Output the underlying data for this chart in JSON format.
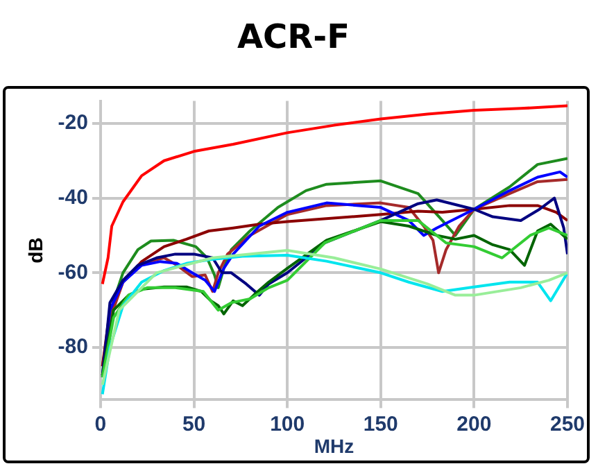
{
  "chart_data": {
    "type": "line",
    "title": "ACR-F",
    "xlabel": "MHz",
    "ylabel": "dB",
    "xlim": [
      0,
      250
    ],
    "xticks": [
      0,
      50,
      100,
      150,
      200,
      250
    ],
    "ylim": [
      -94,
      -14
    ],
    "yticks": [
      -20,
      -40,
      -60,
      -80
    ],
    "grid": true,
    "legend": false,
    "marker": "none",
    "line_style": "solid",
    "series": [
      {
        "color": "#ff0000",
        "x": [
          1,
          4,
          6,
          12,
          22,
          34,
          50,
          71,
          100,
          125,
          150,
          175,
          200,
          225,
          250
        ],
        "values": [
          -63,
          -56,
          -47.5,
          -41,
          -34,
          -30,
          -27.5,
          -25.6,
          -22.5,
          -20.5,
          -18.8,
          -17.5,
          -16.5,
          -16,
          -15.3
        ]
      },
      {
        "color": "#99ee99",
        "x": [
          1,
          10,
          30,
          60,
          100,
          125,
          150,
          175,
          190,
          200,
          225,
          240,
          250
        ],
        "values": [
          -90,
          -70,
          -60,
          -56,
          -54,
          -56,
          -59,
          -63,
          -66,
          -66,
          -64,
          -62,
          -60
        ]
      },
      {
        "color": "#00e5ee",
        "x": [
          1,
          5,
          12,
          22,
          34,
          46,
          58,
          76,
          100,
          121,
          150,
          165,
          183,
          200,
          219,
          234,
          241,
          250
        ],
        "values": [
          -92.5,
          -80,
          -68.8,
          -62.5,
          -59.4,
          -57.5,
          -56.5,
          -55.6,
          -55.3,
          -56.9,
          -60,
          -62.5,
          -65,
          -63.8,
          -62.5,
          -62.5,
          -67.5,
          -60
        ]
      },
      {
        "color": "#33cc33",
        "x": [
          1,
          7,
          15,
          25,
          40,
          55,
          63,
          70,
          80,
          90,
          100,
          120,
          150,
          170,
          185,
          200,
          215,
          230,
          240,
          250
        ],
        "values": [
          -88,
          -72,
          -66,
          -64,
          -64,
          -65,
          -70,
          -68,
          -67,
          -64,
          -62,
          -52,
          -46,
          -46,
          -52,
          -53,
          -56,
          -50,
          -48,
          -50
        ]
      },
      {
        "color": "#006400",
        "x": [
          1,
          7,
          15,
          22,
          34,
          46,
          54,
          59,
          63,
          66,
          71,
          76,
          82,
          90,
          100,
          121,
          150,
          165,
          180,
          190,
          200,
          210,
          219,
          227,
          234,
          241,
          250
        ],
        "values": [
          -87.5,
          -70,
          -66,
          -64.4,
          -63.8,
          -63.8,
          -65,
          -67.5,
          -68.8,
          -71,
          -67.5,
          -68.8,
          -66,
          -62.5,
          -58.8,
          -51.3,
          -46.3,
          -47.5,
          -50,
          -51,
          -50,
          -52.5,
          -53.8,
          -58,
          -48.8,
          -47,
          -51
        ]
      },
      {
        "color": "#000080",
        "x": [
          1,
          5,
          12,
          20,
          30,
          40,
          50,
          60,
          65,
          70,
          78,
          85,
          90,
          100,
          120,
          150,
          170,
          180,
          200,
          210,
          225,
          235,
          243,
          248,
          250
        ],
        "values": [
          -88,
          -68,
          -62,
          -58,
          -56,
          -55,
          -55,
          -56,
          -60,
          -60,
          -63,
          -66,
          -63,
          -60,
          -52,
          -46,
          -41.5,
          -40.5,
          -43,
          -45,
          -46,
          -43,
          -40,
          -48,
          -55
        ]
      },
      {
        "color": "#0000ff",
        "x": [
          1,
          5,
          12,
          22,
          32,
          41,
          49,
          56,
          61,
          66,
          71,
          85,
          100,
          121,
          150,
          165,
          173,
          180,
          200,
          219,
          234,
          246,
          250
        ],
        "values": [
          -87.5,
          -70,
          -62.5,
          -58,
          -57,
          -57.5,
          -60,
          -62,
          -65,
          -58.8,
          -55,
          -47.5,
          -43.8,
          -41.3,
          -42.5,
          -46,
          -50,
          -48,
          -43,
          -38,
          -34.4,
          -33,
          -34.4
        ]
      },
      {
        "color": "#8b0000",
        "x": [
          1,
          5,
          12,
          22,
          34,
          46,
          58,
          71,
          85,
          100,
          150,
          170,
          183,
          200,
          219,
          234,
          244,
          250
        ],
        "values": [
          -85,
          -70,
          -62.5,
          -57,
          -53,
          -51,
          -48.8,
          -48,
          -47,
          -46.3,
          -44.4,
          -43.5,
          -43.8,
          -43,
          -42,
          -42,
          -43.8,
          -46
        ]
      },
      {
        "color": "#a52a2a",
        "x": [
          1,
          5,
          12,
          22,
          34,
          41,
          49,
          56,
          60,
          63,
          68,
          80,
          100,
          121,
          150,
          165,
          173,
          178,
          181,
          185,
          192,
          200,
          219,
          234,
          250
        ],
        "values": [
          -85,
          -72.5,
          -62.5,
          -57.5,
          -56,
          -58,
          -61,
          -60.6,
          -65,
          -60,
          -55,
          -50,
          -44.4,
          -42,
          -41.3,
          -42.5,
          -47.5,
          -51.3,
          -60,
          -53.8,
          -47.5,
          -43,
          -38.8,
          -35.6,
          -35
        ]
      },
      {
        "color": "#1e8c1e",
        "x": [
          1,
          4,
          7,
          12,
          20,
          27,
          39,
          51,
          57,
          61,
          63,
          66,
          70,
          80,
          95,
          110,
          121,
          150,
          170,
          183,
          190,
          200,
          219,
          234,
          250
        ],
        "values": [
          -87.5,
          -75,
          -67.5,
          -60,
          -53.8,
          -51.5,
          -51.3,
          -53,
          -56,
          -60.6,
          -64,
          -58.8,
          -53.8,
          -48.8,
          -42.5,
          -38,
          -36.3,
          -35.4,
          -38.8,
          -46,
          -50,
          -43,
          -37,
          -31,
          -29.4
        ]
      }
    ]
  }
}
